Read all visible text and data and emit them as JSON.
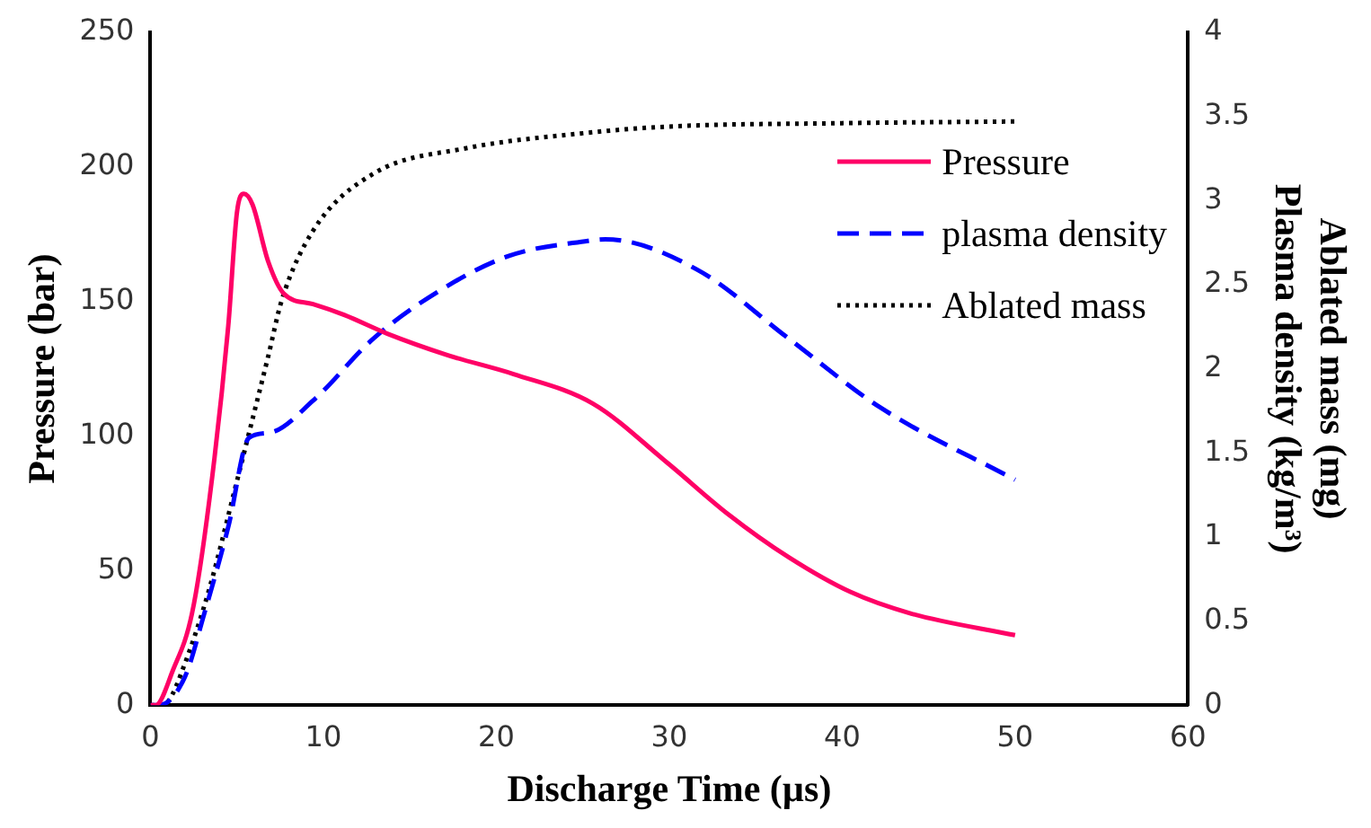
{
  "chart_data": {
    "type": "line",
    "xlabel": "Discharge Time (µs)",
    "ylabel": "Pressure (bar)",
    "y2label": [
      "Ablated mass (mg)",
      "Plasma density (kg/m³)"
    ],
    "xlim": [
      0,
      60
    ],
    "xticks": [
      0,
      10,
      20,
      30,
      40,
      50,
      60
    ],
    "ylim": [
      0,
      250
    ],
    "yticks": [
      0,
      50,
      100,
      150,
      200,
      250
    ],
    "y2lim": [
      0,
      4
    ],
    "y2ticks": [
      0,
      0.5,
      1,
      1.5,
      2,
      2.5,
      3,
      3.5,
      4
    ],
    "grid": false,
    "legend": "top right",
    "marker": "none",
    "series": [
      {
        "name": "Pressure",
        "color": "#ff0066",
        "line_style": "solid",
        "x": [
          0,
          0.3,
          1.3,
          2.4,
          3.4,
          4.5,
          5.0,
          5.4,
          5.9,
          6.8,
          7.7,
          9.4,
          11.2,
          13.7,
          17.2,
          21.0,
          25.6,
          29.9,
          33.4,
          36.9,
          40.5,
          44,
          50
        ],
        "values": [
          0,
          0,
          13,
          34,
          76,
          141,
          183,
          190,
          186,
          165,
          153,
          149,
          145,
          138,
          130,
          123,
          112,
          90,
          71,
          55,
          42,
          34,
          26
        ]
      },
      {
        "name": "plasma density",
        "color": "#0000ff",
        "line_style": "dashed",
        "axis": "y2",
        "x": [
          0,
          0.5,
          2.0,
          3.1,
          4.5,
          5.7,
          6.9,
          9.4,
          12.9,
          16.5,
          20.7,
          25.3,
          26.3,
          31.6,
          36.9,
          42.2,
          50
        ],
        "values": [
          0,
          0,
          0.17,
          0.54,
          1.06,
          1.59,
          1.62,
          1.81,
          2.18,
          2.45,
          2.67,
          2.76,
          2.77,
          2.59,
          2.18,
          1.77,
          1.34
        ]
      },
      {
        "name": "Ablated mass",
        "color": "#000000",
        "line_style": "dotted",
        "axis": "y2",
        "x": [
          0,
          0.5,
          1.0,
          2.0,
          3.4,
          4.8,
          5.9,
          6.8,
          7.6,
          9.4,
          12.9,
          18.2,
          25,
          30,
          40,
          50
        ],
        "values": [
          0,
          0,
          0.02,
          0.25,
          0.69,
          1.25,
          1.7,
          2.07,
          2.41,
          2.82,
          3.16,
          3.31,
          3.4,
          3.44,
          3.46,
          3.47
        ]
      }
    ]
  }
}
